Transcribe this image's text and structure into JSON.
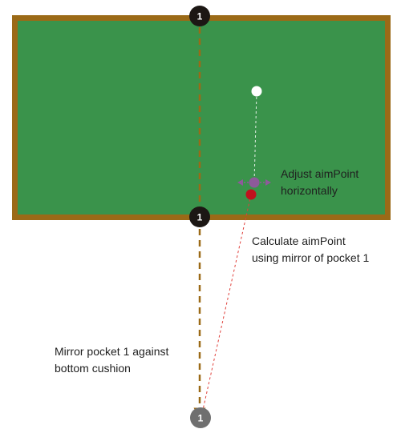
{
  "colors": {
    "felt": "#3a934b",
    "cushion": "#9b6a17",
    "pocket": "#1c1714",
    "mirror_pocket": "#6f6f6f",
    "cue_ball": "#ffffff",
    "aim_point": "#8e5a9a",
    "target_ball": "#c0121d",
    "guide_line": "#9b6a17",
    "aim_line": "#e0403b"
  },
  "pockets": {
    "top_label": "1",
    "bottom_label": "1",
    "mirror_label": "1"
  },
  "annotations": {
    "adjust_line1": "Adjust aimPoint",
    "adjust_line2": "horizontally",
    "calc_line1": "Calculate aimPoint",
    "calc_line2": "using mirror of pocket 1",
    "mirror_line1": "Mirror pocket 1 against",
    "mirror_line2": "bottom cushion"
  }
}
